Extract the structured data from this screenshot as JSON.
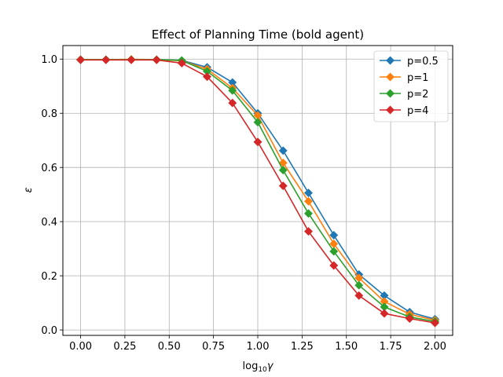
{
  "chart_data": {
    "type": "line",
    "title": "Effect of Planning Time (bold agent)",
    "xlabel_main": "log",
    "xlabel_sub": "10",
    "xlabel_var": "γ",
    "ylabel": "ε",
    "xlim": [
      -0.1,
      2.1
    ],
    "ylim": [
      -0.02,
      1.05
    ],
    "xticks": [
      0.0,
      0.25,
      0.5,
      0.75,
      1.0,
      1.25,
      1.5,
      1.75,
      2.0
    ],
    "xtick_labels": [
      "0.00",
      "0.25",
      "0.50",
      "0.75",
      "1.00",
      "1.25",
      "1.50",
      "1.75",
      "2.00"
    ],
    "yticks": [
      0.0,
      0.2,
      0.4,
      0.6,
      0.8,
      1.0
    ],
    "ytick_labels": [
      "0.0",
      "0.2",
      "0.4",
      "0.6",
      "0.8",
      "1.0"
    ],
    "grid": true,
    "legend_position": "top-right",
    "x": [
      0.0,
      0.143,
      0.286,
      0.429,
      0.571,
      0.714,
      0.857,
      1.0,
      1.143,
      1.286,
      1.429,
      1.571,
      1.714,
      1.857,
      2.0
    ],
    "series": [
      {
        "name": "p=0.5",
        "color": "#1f77b4",
        "values": [
          0.998,
          0.998,
          0.998,
          0.998,
          0.995,
          0.97,
          0.914,
          0.8,
          0.662,
          0.506,
          0.35,
          0.205,
          0.127,
          0.066,
          0.04
        ]
      },
      {
        "name": "p=1",
        "color": "#ff7f0e",
        "values": [
          0.998,
          0.998,
          0.999,
          0.998,
          0.994,
          0.963,
          0.893,
          0.792,
          0.617,
          0.475,
          0.318,
          0.192,
          0.105,
          0.058,
          0.036
        ]
      },
      {
        "name": "p=2",
        "color": "#2ca02c",
        "values": [
          0.998,
          0.998,
          0.998,
          0.998,
          0.995,
          0.955,
          0.884,
          0.767,
          0.59,
          0.43,
          0.29,
          0.165,
          0.085,
          0.048,
          0.031
        ]
      },
      {
        "name": "p=4",
        "color": "#d62728",
        "values": [
          0.997,
          0.997,
          0.997,
          0.997,
          0.985,
          0.935,
          0.838,
          0.694,
          0.532,
          0.364,
          0.238,
          0.127,
          0.061,
          0.042,
          0.026
        ]
      }
    ]
  }
}
